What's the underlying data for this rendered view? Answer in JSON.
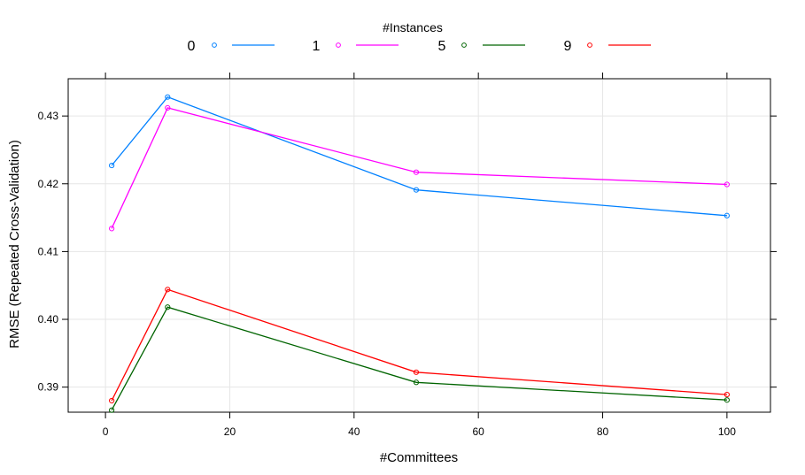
{
  "chart_data": {
    "type": "line",
    "legend_title": "#Instances",
    "legend_position": "top",
    "xlabel": "#Committees",
    "ylabel": "RMSE (Repeated Cross-Validation)",
    "xlim": [
      -6,
      107
    ],
    "ylim": [
      0.3863,
      0.4355
    ],
    "x_ticks": [
      0,
      20,
      40,
      60,
      80,
      100
    ],
    "x_tick_labels": [
      "0",
      "20",
      "40",
      "60",
      "80",
      "100"
    ],
    "y_ticks": [
      0.39,
      0.4,
      0.41,
      0.42,
      0.43
    ],
    "y_tick_labels": [
      "0.39",
      "0.40",
      "0.41",
      "0.42",
      "0.43"
    ],
    "grid": true,
    "x": [
      1,
      10,
      50,
      100
    ],
    "series": [
      {
        "name": "0",
        "color": "#0080ff",
        "values": [
          0.4227,
          0.4328,
          0.4191,
          0.4153
        ]
      },
      {
        "name": "1",
        "color": "#ff00ff",
        "values": [
          0.4134,
          0.4312,
          0.4217,
          0.4199
        ]
      },
      {
        "name": "5",
        "color": "#006400",
        "values": [
          0.3866,
          0.4018,
          0.3907,
          0.3881
        ]
      },
      {
        "name": "9",
        "color": "#ff0000",
        "values": [
          0.388,
          0.4044,
          0.3922,
          0.3889
        ]
      }
    ]
  }
}
